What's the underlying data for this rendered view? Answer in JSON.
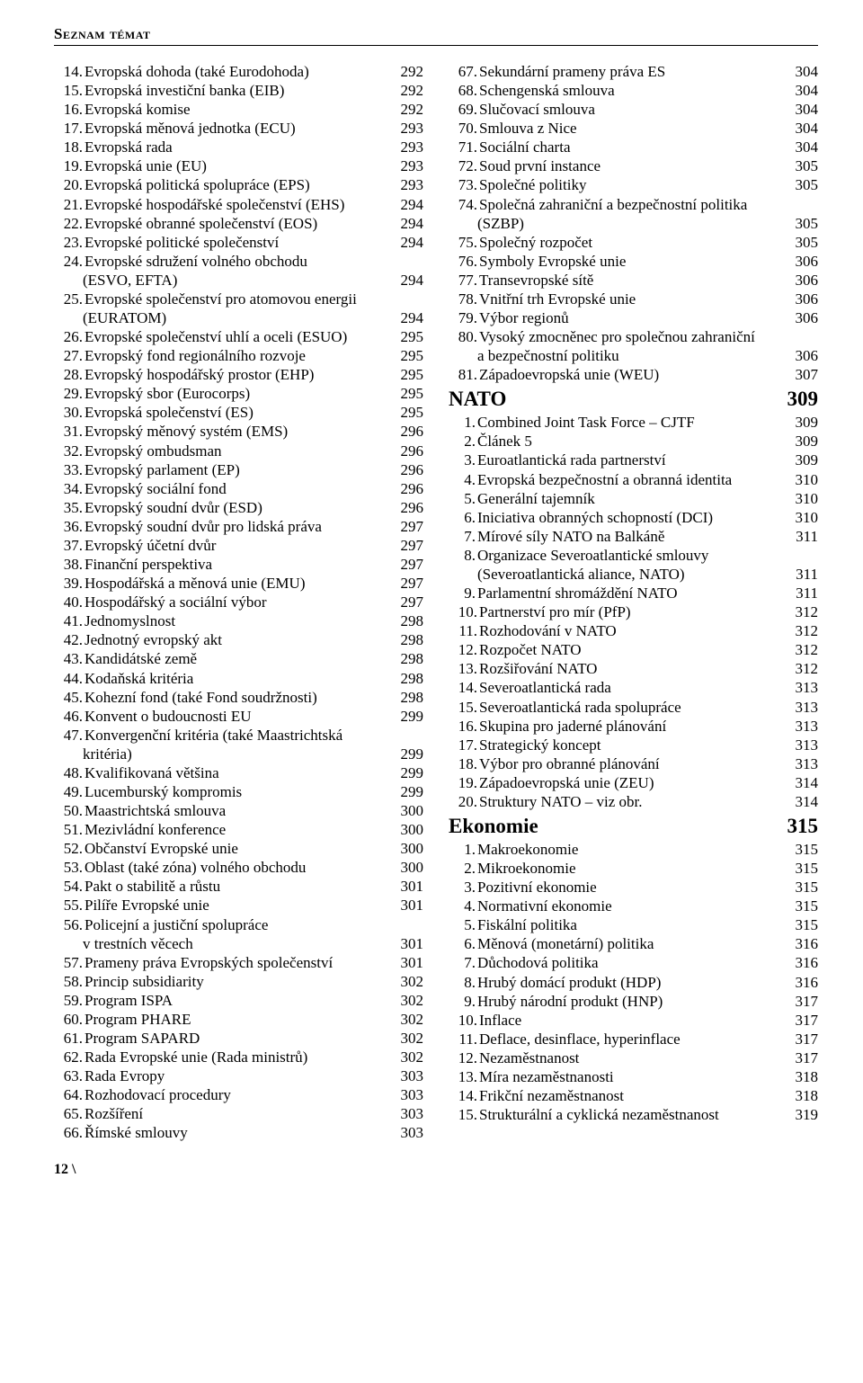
{
  "header": "Seznam témat",
  "footer": "12 \\",
  "left": [
    {
      "n": "14.",
      "t": "Evropská dohoda (také Eurodohoda)",
      "p": "292"
    },
    {
      "n": "15.",
      "t": "Evropská investiční banka (EIB)",
      "p": "292"
    },
    {
      "n": "16.",
      "t": "Evropská komise",
      "p": "292"
    },
    {
      "n": "17.",
      "t": "Evropská měnová jednotka (ECU)",
      "p": "293"
    },
    {
      "n": "18.",
      "t": "Evropská rada",
      "p": "293"
    },
    {
      "n": "19.",
      "t": "Evropská unie (EU)",
      "p": "293"
    },
    {
      "n": "20.",
      "t": "Evropská politická spolupráce (EPS)",
      "p": "293"
    },
    {
      "n": "21.",
      "t": "Evropské hospodářské společenství (EHS)",
      "p": "294"
    },
    {
      "n": "22.",
      "t": "Evropské obranné společenství (EOS)",
      "p": "294"
    },
    {
      "n": "23.",
      "t": "Evropské politické společenství",
      "p": "294"
    },
    {
      "n": "24.",
      "t": "Evropské sdružení volného obchodu",
      "p": ""
    },
    {
      "n": "",
      "t": "(ESVO, EFTA)",
      "p": "294",
      "cont": true
    },
    {
      "n": "25.",
      "t": "Evropské společenství pro atomovou energii",
      "p": ""
    },
    {
      "n": "",
      "t": "(EURATOM)",
      "p": "294",
      "cont": true
    },
    {
      "n": "26.",
      "t": "Evropské společenství uhlí a oceli (ESUO)",
      "p": "295"
    },
    {
      "n": "27.",
      "t": "Evropský fond regionálního rozvoje",
      "p": "295"
    },
    {
      "n": "28.",
      "t": "Evropský hospodářský prostor (EHP)",
      "p": "295"
    },
    {
      "n": "29.",
      "t": "Evropský sbor (Eurocorps)",
      "p": "295"
    },
    {
      "n": "30.",
      "t": "Evropská společenství (ES)",
      "p": "295"
    },
    {
      "n": "31.",
      "t": "Evropský měnový systém (EMS)",
      "p": "296"
    },
    {
      "n": "32.",
      "t": "Evropský ombudsman",
      "p": "296"
    },
    {
      "n": "33.",
      "t": "Evropský parlament (EP)",
      "p": "296"
    },
    {
      "n": "34.",
      "t": "Evropský sociální fond",
      "p": "296"
    },
    {
      "n": "35.",
      "t": "Evropský soudní dvůr (ESD)",
      "p": "296"
    },
    {
      "n": "36.",
      "t": "Evropský soudní dvůr pro lidská práva",
      "p": "297"
    },
    {
      "n": "37.",
      "t": "Evropský účetní dvůr",
      "p": "297"
    },
    {
      "n": "38.",
      "t": "Finanční perspektiva",
      "p": "297"
    },
    {
      "n": "39.",
      "t": "Hospodářská a měnová unie (EMU)",
      "p": "297"
    },
    {
      "n": "40.",
      "t": "Hospodářský a sociální výbor",
      "p": "297"
    },
    {
      "n": "41.",
      "t": "Jednomyslnost",
      "p": "298"
    },
    {
      "n": "42.",
      "t": "Jednotný evropský akt",
      "p": "298"
    },
    {
      "n": "43.",
      "t": "Kandidátské země",
      "p": "298"
    },
    {
      "n": "44.",
      "t": "Kodaňská kritéria",
      "p": "298"
    },
    {
      "n": "45.",
      "t": "Kohezní fond (také Fond soudržnosti)",
      "p": "298"
    },
    {
      "n": "46.",
      "t": "Konvent o budoucnosti EU",
      "p": "299"
    },
    {
      "n": "47.",
      "t": "Konvergenční kritéria (také Maastrichtská",
      "p": ""
    },
    {
      "n": "",
      "t": "kritéria)",
      "p": "299",
      "cont": true
    },
    {
      "n": "48.",
      "t": "Kvalifikovaná většina",
      "p": "299"
    },
    {
      "n": "49.",
      "t": "Lucemburský kompromis",
      "p": "299"
    },
    {
      "n": "50.",
      "t": "Maastrichtská smlouva",
      "p": "300"
    },
    {
      "n": "51.",
      "t": "Mezivládní konference",
      "p": "300"
    },
    {
      "n": "52.",
      "t": "Občanství Evropské unie",
      "p": "300"
    },
    {
      "n": "53.",
      "t": "Oblast (také zóna) volného obchodu",
      "p": "300"
    },
    {
      "n": "54.",
      "t": "Pakt o stabilitě a růstu",
      "p": "301"
    },
    {
      "n": "55.",
      "t": "Pilíře Evropské unie",
      "p": "301"
    },
    {
      "n": "56.",
      "t": "Policejní a justiční spolupráce",
      "p": ""
    },
    {
      "n": "",
      "t": "v trestních věcech",
      "p": "301",
      "cont": true
    },
    {
      "n": "57.",
      "t": "Prameny práva Evropských společenství",
      "p": "301"
    },
    {
      "n": "58.",
      "t": "Princip subsidiarity",
      "p": "302"
    },
    {
      "n": "59.",
      "t": "Program ISPA",
      "p": "302"
    },
    {
      "n": "60.",
      "t": "Program PHARE",
      "p": "302"
    },
    {
      "n": "61.",
      "t": "Program SAPARD",
      "p": "302"
    },
    {
      "n": "62.",
      "t": "Rada Evropské unie (Rada ministrů)",
      "p": "302"
    },
    {
      "n": "63.",
      "t": "Rada Evropy",
      "p": "303"
    },
    {
      "n": "64.",
      "t": "Rozhodovací procedury",
      "p": "303"
    },
    {
      "n": "65.",
      "t": "Rozšíření",
      "p": "303"
    },
    {
      "n": "66.",
      "t": "Římské smlouvy",
      "p": "303"
    }
  ],
  "right": [
    {
      "type": "item",
      "n": "67.",
      "t": "Sekundární prameny práva ES",
      "p": "304"
    },
    {
      "type": "item",
      "n": "68.",
      "t": "Schengenská smlouva",
      "p": "304"
    },
    {
      "type": "item",
      "n": "69.",
      "t": "Slučovací smlouva",
      "p": "304"
    },
    {
      "type": "item",
      "n": "70.",
      "t": "Smlouva z Nice",
      "p": "304"
    },
    {
      "type": "item",
      "n": "71.",
      "t": "Sociální charta",
      "p": "304"
    },
    {
      "type": "item",
      "n": "72.",
      "t": "Soud první instance",
      "p": "305"
    },
    {
      "type": "item",
      "n": "73.",
      "t": "Společné politiky",
      "p": "305"
    },
    {
      "type": "item",
      "n": "74.",
      "t": "Společná zahraniční a bezpečnostní politika",
      "p": ""
    },
    {
      "type": "item",
      "n": "",
      "t": "(SZBP)",
      "p": "305",
      "cont": true
    },
    {
      "type": "item",
      "n": "75.",
      "t": "Společný rozpočet",
      "p": "305"
    },
    {
      "type": "item",
      "n": "76.",
      "t": "Symboly Evropské unie",
      "p": "306"
    },
    {
      "type": "item",
      "n": "77.",
      "t": "Transevropské sítě",
      "p": "306"
    },
    {
      "type": "item",
      "n": "78.",
      "t": "Vnitřní trh Evropské unie",
      "p": "306"
    },
    {
      "type": "item",
      "n": "79.",
      "t": "Výbor regionů",
      "p": "306"
    },
    {
      "type": "item",
      "n": "80.",
      "t": "Vysoký zmocněnec pro společnou zahraniční",
      "p": ""
    },
    {
      "type": "item",
      "n": "",
      "t": "a bezpečnostní politiku",
      "p": "306",
      "cont": true
    },
    {
      "type": "item",
      "n": "81.",
      "t": "Západoevropská unie (WEU)",
      "p": "307"
    },
    {
      "type": "section",
      "t": "NATO",
      "p": "309"
    },
    {
      "type": "item",
      "n": "1.",
      "t": "Combined Joint Task Force – CJTF",
      "p": "309",
      "short": true
    },
    {
      "type": "item",
      "n": "2.",
      "t": "Článek 5",
      "p": "309",
      "short": true
    },
    {
      "type": "item",
      "n": "3.",
      "t": "Euroatlantická rada partnerství",
      "p": "309",
      "short": true
    },
    {
      "type": "item",
      "n": "4.",
      "t": "Evropská bezpečnostní a obranná identita",
      "p": "310",
      "short": true
    },
    {
      "type": "item",
      "n": "5.",
      "t": "Generální tajemník",
      "p": "310",
      "short": true
    },
    {
      "type": "item",
      "n": "6.",
      "t": "Iniciativa obranných schopností (DCI)",
      "p": "310",
      "short": true
    },
    {
      "type": "item",
      "n": "7.",
      "t": "Mírové síly NATO na Balkáně",
      "p": "311",
      "short": true
    },
    {
      "type": "item",
      "n": "8.",
      "t": "Organizace Severoatlantické smlouvy",
      "p": "",
      "short": true
    },
    {
      "type": "item",
      "n": "",
      "t": "(Severoatlantická aliance, NATO)",
      "p": "311",
      "cont": true
    },
    {
      "type": "item",
      "n": "9.",
      "t": "Parlamentní shromáždění NATO",
      "p": "311",
      "short": true
    },
    {
      "type": "item",
      "n": "10.",
      "t": "Partnerství pro mír (PfP)",
      "p": "312"
    },
    {
      "type": "item",
      "n": "11.",
      "t": "Rozhodování v NATO",
      "p": "312"
    },
    {
      "type": "item",
      "n": "12.",
      "t": "Rozpočet NATO",
      "p": "312"
    },
    {
      "type": "item",
      "n": "13.",
      "t": "Rozšiřování NATO",
      "p": "312"
    },
    {
      "type": "item",
      "n": "14.",
      "t": "Severoatlantická rada",
      "p": "313"
    },
    {
      "type": "item",
      "n": "15.",
      "t": "Severoatlantická rada spolupráce",
      "p": "313"
    },
    {
      "type": "item",
      "n": "16.",
      "t": "Skupina pro jaderné plánování",
      "p": "313"
    },
    {
      "type": "item",
      "n": "17.",
      "t": "Strategický koncept",
      "p": "313"
    },
    {
      "type": "item",
      "n": "18.",
      "t": "Výbor pro obranné plánování",
      "p": "313"
    },
    {
      "type": "item",
      "n": "19.",
      "t": "Západoevropská unie (ZEU)",
      "p": "314"
    },
    {
      "type": "item",
      "n": "20.",
      "t": "Struktury NATO – viz obr.",
      "p": "314"
    },
    {
      "type": "section",
      "t": "Ekonomie",
      "p": "315"
    },
    {
      "type": "item",
      "n": "1.",
      "t": "Makroekonomie",
      "p": "315",
      "short": true
    },
    {
      "type": "item",
      "n": "2.",
      "t": "Mikroekonomie",
      "p": "315",
      "short": true
    },
    {
      "type": "item",
      "n": "3.",
      "t": "Pozitivní ekonomie",
      "p": "315",
      "short": true
    },
    {
      "type": "item",
      "n": "4.",
      "t": "Normativní ekonomie",
      "p": "315",
      "short": true
    },
    {
      "type": "item",
      "n": "5.",
      "t": "Fiskální politika",
      "p": "315",
      "short": true
    },
    {
      "type": "item",
      "n": "6.",
      "t": "Měnová (monetární) politika",
      "p": "316",
      "short": true
    },
    {
      "type": "item",
      "n": "7.",
      "t": "Důchodová politika",
      "p": "316",
      "short": true
    },
    {
      "type": "item",
      "n": "8.",
      "t": "Hrubý domácí produkt (HDP)",
      "p": "316",
      "short": true
    },
    {
      "type": "item",
      "n": "9.",
      "t": "Hrubý národní produkt (HNP)",
      "p": "317",
      "short": true
    },
    {
      "type": "item",
      "n": "10.",
      "t": "Inflace",
      "p": "317"
    },
    {
      "type": "item",
      "n": "11.",
      "t": "Deflace, desinflace, hyperinflace",
      "p": "317"
    },
    {
      "type": "item",
      "n": "12.",
      "t": "Nezaměstnanost",
      "p": "317"
    },
    {
      "type": "item",
      "n": "13.",
      "t": "Míra nezaměstnanosti",
      "p": "318"
    },
    {
      "type": "item",
      "n": "14.",
      "t": "Frikční nezaměstnanost",
      "p": "318"
    },
    {
      "type": "item",
      "n": "15.",
      "t": "Strukturální a cyklická nezaměstnanost",
      "p": "319"
    }
  ]
}
